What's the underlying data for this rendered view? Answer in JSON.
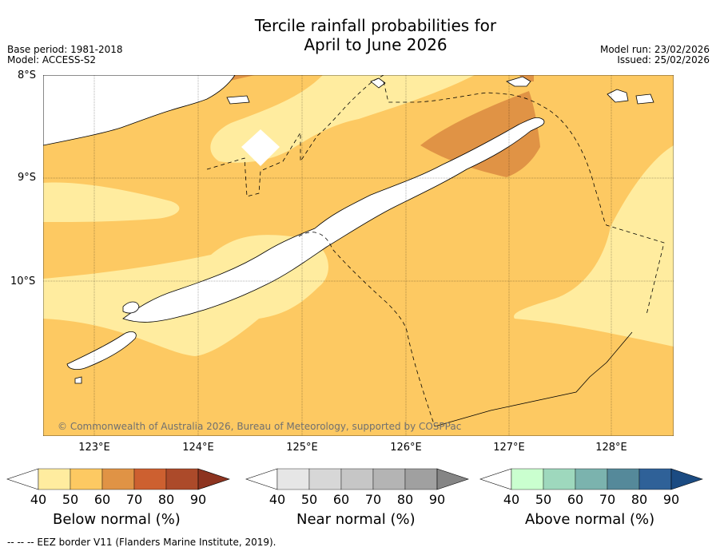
{
  "title": {
    "line1": "Tercile rainfall probabilities for",
    "line2": "April to June 2026"
  },
  "meta": {
    "base_period": "Base period: 1981-2018",
    "model": "Model: ACCESS-S2",
    "model_run": "Model run: 23/02/2026",
    "issued": "Issued: 25/02/2026"
  },
  "map": {
    "lat_labels": [
      "8°S",
      "9°S",
      "10°S"
    ],
    "lon_labels": [
      "123°E",
      "124°E",
      "125°E",
      "126°E",
      "127°E",
      "128°E"
    ],
    "copyright": "© Commonwealth of Australia 2026, Bureau of Meteorology, supported by COSPPac",
    "colors": {
      "below_50": "#ffec9f",
      "below_60": "#fdc962",
      "below_70": "#e09345",
      "land": "#ffffff",
      "coast": "#000000",
      "eez": "#000000"
    }
  },
  "colorbars": [
    {
      "label": "Below normal (%)",
      "ticks": [
        "40",
        "50",
        "60",
        "70",
        "80",
        "90"
      ],
      "colors": [
        "#ffffff",
        "#ffec9f",
        "#fdc962",
        "#e09345",
        "#cd6030",
        "#ac4a2a",
        "#8d3420"
      ]
    },
    {
      "label": "Near normal (%)",
      "ticks": [
        "40",
        "50",
        "60",
        "70",
        "80",
        "90"
      ],
      "colors": [
        "#ffffff",
        "#e6e6e6",
        "#d7d7d7",
        "#c6c6c6",
        "#b4b4b4",
        "#a0a0a0",
        "#858585"
      ]
    },
    {
      "label": "Above normal (%)",
      "ticks": [
        "40",
        "50",
        "60",
        "70",
        "80",
        "90"
      ],
      "colors": [
        "#ffffff",
        "#caffcf",
        "#9ed8bd",
        "#7bb3ae",
        "#55899a",
        "#2f6198",
        "#1b4b82"
      ]
    }
  ],
  "footnote": "--  --  -- EEZ border V11 (Flanders Marine Institute, 2019)."
}
